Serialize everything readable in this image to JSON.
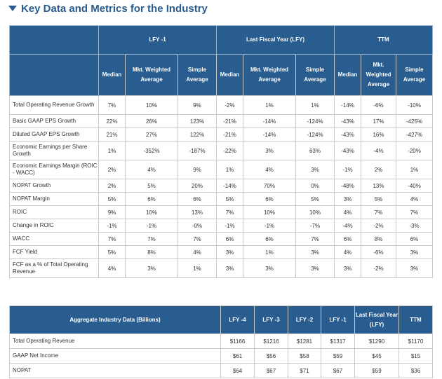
{
  "section": {
    "title": "Key Data and Metrics for the Industry",
    "caret_icon": "caret-down-icon"
  },
  "colors": {
    "header_bg": "#2a5d8f",
    "title": "#2a5d8f"
  },
  "table1": {
    "groups": [
      "LFY -1",
      "Last Fiscal Year (LFY)",
      "TTM"
    ],
    "subheaders": [
      "Median",
      "Mkt. Weighted Average",
      "Simple Average",
      "Median",
      "Mkt. Weighted Average",
      "Simple Average",
      "Median",
      "Mkt. Weighted Average",
      "Simple Average"
    ],
    "rows": [
      {
        "label": "Total Operating Revenue Growth",
        "values": [
          "7%",
          "10%",
          "9%",
          "-2%",
          "1%",
          "1%",
          "-14%",
          "-6%",
          "-10%"
        ]
      },
      {
        "label": "Basic GAAP EPS Growth",
        "values": [
          "22%",
          "26%",
          "123%",
          "-21%",
          "-14%",
          "-124%",
          "-43%",
          "17%",
          "-425%"
        ]
      },
      {
        "label": "Diluted GAAP EPS Growth",
        "values": [
          "21%",
          "27%",
          "122%",
          "-21%",
          "-14%",
          "-124%",
          "-43%",
          "16%",
          "-427%"
        ]
      },
      {
        "label": "Economic Earnings per Share Growth",
        "values": [
          "1%",
          "-352%",
          "-187%",
          "-22%",
          "3%",
          "63%",
          "-43%",
          "-4%",
          "-20%"
        ]
      },
      {
        "label": "Economic Earnings Margin (ROIC - WACC)",
        "values": [
          "2%",
          "4%",
          "9%",
          "1%",
          "4%",
          "3%",
          "-1%",
          "2%",
          "1%"
        ]
      },
      {
        "label": "NOPAT Growth",
        "values": [
          "2%",
          "5%",
          "20%",
          "-14%",
          "70%",
          "0%",
          "-48%",
          "13%",
          "-40%"
        ]
      },
      {
        "label": "NOPAT Margin",
        "values": [
          "5%",
          "6%",
          "6%",
          "5%",
          "6%",
          "5%",
          "3%",
          "5%",
          "4%"
        ]
      },
      {
        "label": "ROIC",
        "values": [
          "9%",
          "10%",
          "13%",
          "7%",
          "10%",
          "10%",
          "4%",
          "7%",
          "7%"
        ]
      },
      {
        "label": "Change in ROIC",
        "values": [
          "-1%",
          "-1%",
          "-0%",
          "-1%",
          "-1%",
          "-7%",
          "-4%",
          "-2%",
          "-3%"
        ]
      },
      {
        "label": "WACC",
        "values": [
          "7%",
          "7%",
          "7%",
          "6%",
          "6%",
          "7%",
          "6%",
          "8%",
          "6%"
        ]
      },
      {
        "label": "FCF Yield",
        "values": [
          "5%",
          "8%",
          "4%",
          "3%",
          "1%",
          "3%",
          "4%",
          "-6%",
          "3%"
        ]
      },
      {
        "label": "FCF as a % of Total Operating Revenue",
        "values": [
          "4%",
          "3%",
          "1%",
          "3%",
          "3%",
          "3%",
          "3%",
          "-2%",
          "3%"
        ]
      }
    ]
  },
  "table2": {
    "title": "Aggregate Industry Data (Billions)",
    "headers": [
      "LFY -4",
      "LFY -3",
      "LFY -2",
      "LFY -1",
      "Last Fiscal Year (LFY)",
      "TTM"
    ],
    "rows": [
      {
        "label": "Total Operating Revenue",
        "values": [
          "$1166",
          "$1216",
          "$1281",
          "$1317",
          "$1290",
          "$1170"
        ]
      },
      {
        "label": "GAAP Net Income",
        "values": [
          "$61",
          "$56",
          "$58",
          "$59",
          "$45",
          "$15"
        ]
      },
      {
        "label": "NOPAT",
        "values": [
          "$64",
          "$67",
          "$71",
          "$67",
          "$59",
          "$36"
        ]
      }
    ]
  }
}
